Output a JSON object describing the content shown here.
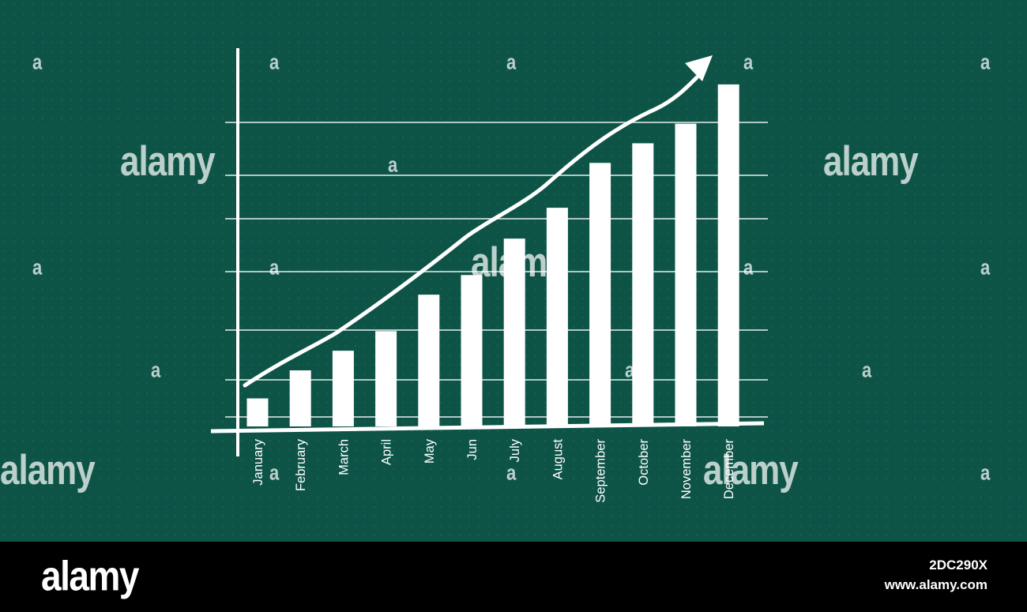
{
  "chart_data": {
    "type": "bar",
    "categories": [
      "January",
      "February",
      "March",
      "April",
      "May",
      "Jun",
      "July",
      "August",
      "September",
      "October",
      "November",
      "December"
    ],
    "values": [
      1,
      2,
      2.7,
      3.4,
      4.7,
      5.4,
      6.7,
      7.8,
      9.4,
      10.1,
      10.8,
      12.2
    ],
    "trend_arrow": true,
    "grid": true,
    "title": "",
    "xlabel": "",
    "ylabel": ""
  },
  "watermark": {
    "text": "alamy",
    "mark": "a"
  },
  "footer": {
    "logo": "alamy",
    "image_id": "2DC290X",
    "url": "www.alamy.com"
  }
}
